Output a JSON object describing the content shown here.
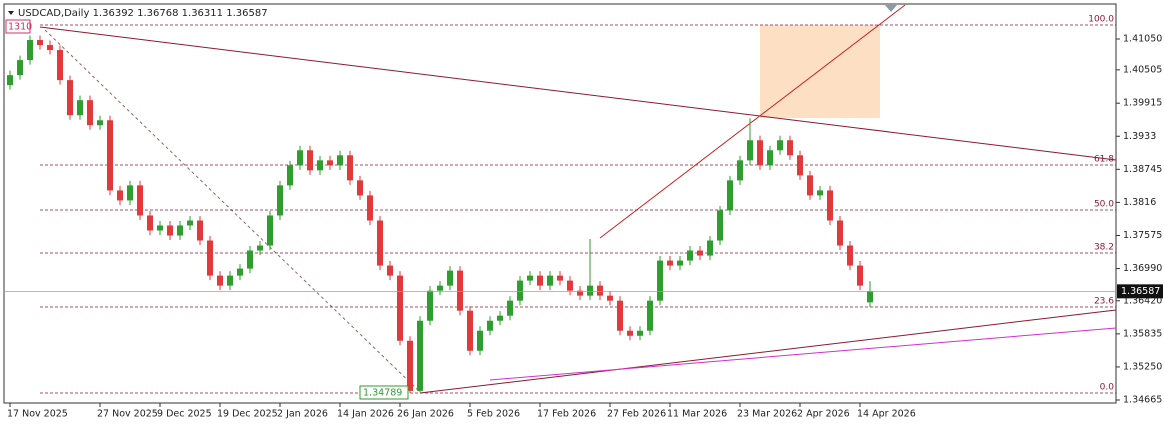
{
  "chart_data": {
    "type": "candlestick",
    "title": "USDCAD,Daily",
    "categories": [
      "17 Nov 2025",
      null,
      null,
      null,
      null,
      null,
      null,
      null,
      null,
      "27 Nov 2025",
      null,
      null,
      null,
      null,
      null,
      "9 Dec 2025",
      null,
      null,
      null,
      null,
      null,
      "19 Dec 2025",
      null,
      null,
      null,
      null,
      null,
      "2 Jan 2026",
      null,
      null,
      null,
      null,
      null,
      "14 Jan 2026",
      null,
      null,
      null,
      null,
      null,
      "26 Jan 2026",
      null,
      null,
      null,
      null,
      null,
      null,
      "5 Feb 2026",
      null,
      null,
      null,
      null,
      null,
      null,
      "17 Feb 2026",
      null,
      null,
      null,
      null,
      null,
      null,
      "27 Feb 2026",
      null,
      null,
      null,
      null,
      null,
      "11 Mar 2026",
      null,
      null,
      null,
      null,
      null,
      null,
      "23 Mar 2026",
      null,
      null,
      null,
      null,
      null,
      "2 Apr 2026",
      null,
      null,
      null,
      null,
      null,
      "14 Apr 2026",
      null
    ],
    "open": [
      1.40234,
      1.40411,
      1.40677,
      1.41032,
      1.40943,
      1.40855,
      1.40323,
      1.39702,
      1.39968,
      1.39525,
      1.39613,
      1.38372,
      1.38195,
      1.38461,
      1.37929,
      1.37663,
      1.37752,
      1.37574,
      1.37752,
      1.3784,
      1.37486,
      1.36865,
      1.36688,
      1.36865,
      1.36989,
      1.37309,
      1.37397,
      1.37929,
      1.38461,
      1.38816,
      1.39082,
      1.38727,
      1.38904,
      1.38816,
      1.38993,
      1.3855,
      1.38284,
      1.3784,
      1.37043,
      1.36865,
      1.35713,
      1.34826,
      1.36067,
      1.36599,
      1.36688,
      1.36954,
      1.36245,
      1.35536,
      1.3589,
      1.36067,
      1.36156,
      1.36422,
      1.36777,
      1.36865,
      1.36688,
      1.36865,
      1.36777,
      1.36599,
      1.36511,
      1.36688,
      1.36511,
      1.36422,
      1.3589,
      1.35801,
      1.3589,
      1.36422,
      1.37131,
      1.37043,
      1.37131,
      1.37309,
      1.3722,
      1.37486,
      1.38018,
      1.3855,
      1.38904,
      1.39259,
      1.38816,
      1.39082,
      1.39259,
      1.38993,
      1.38638,
      1.38284,
      1.38372,
      1.3784,
      1.37397,
      1.37043,
      1.36392
    ],
    "high": [
      1.40491,
      1.40757,
      1.41112,
      1.41112,
      1.41023,
      1.40935,
      1.40403,
      1.40048,
      1.40048,
      1.39693,
      1.39693,
      1.38452,
      1.38541,
      1.38541,
      1.38009,
      1.37832,
      1.37832,
      1.37832,
      1.3792,
      1.3792,
      1.37566,
      1.36945,
      1.36945,
      1.37069,
      1.37389,
      1.37477,
      1.38009,
      1.38541,
      1.38896,
      1.39162,
      1.39162,
      1.38984,
      1.38984,
      1.39073,
      1.39073,
      1.3863,
      1.38364,
      1.3792,
      1.37123,
      1.36945,
      1.35793,
      1.36147,
      1.36679,
      1.36768,
      1.37034,
      1.37034,
      1.36325,
      1.3597,
      1.36147,
      1.36236,
      1.36502,
      1.36857,
      1.36945,
      1.36945,
      1.36945,
      1.36945,
      1.36857,
      1.36679,
      1.37513,
      1.36768,
      1.36591,
      1.36502,
      1.3597,
      1.3597,
      1.36502,
      1.37211,
      1.37211,
      1.37211,
      1.37389,
      1.37389,
      1.37566,
      1.38098,
      1.3863,
      1.38984,
      1.39649,
      1.39339,
      1.39162,
      1.39339,
      1.39339,
      1.39073,
      1.38718,
      1.38452,
      1.38452,
      1.3792,
      1.37477,
      1.37123,
      1.36768
    ],
    "low": [
      1.40154,
      1.40331,
      1.40597,
      1.40863,
      1.40775,
      1.40243,
      1.39622,
      1.39622,
      1.39445,
      1.39445,
      1.38292,
      1.38115,
      1.38115,
      1.37849,
      1.37583,
      1.37583,
      1.37494,
      1.37494,
      1.37672,
      1.37406,
      1.36785,
      1.36608,
      1.36608,
      1.36785,
      1.36909,
      1.37229,
      1.37317,
      1.37849,
      1.38381,
      1.38736,
      1.38647,
      1.38647,
      1.38736,
      1.38736,
      1.3847,
      1.38204,
      1.3776,
      1.36963,
      1.36785,
      1.35633,
      1.34789,
      1.348,
      1.35987,
      1.36519,
      1.36608,
      1.36165,
      1.35456,
      1.35456,
      1.3581,
      1.35987,
      1.36076,
      1.36342,
      1.36697,
      1.36608,
      1.36608,
      1.36697,
      1.36519,
      1.36431,
      1.36431,
      1.36431,
      1.36342,
      1.3581,
      1.35721,
      1.35721,
      1.3581,
      1.36342,
      1.36963,
      1.36963,
      1.37051,
      1.3714,
      1.3714,
      1.37406,
      1.37938,
      1.3847,
      1.38824,
      1.38736,
      1.38736,
      1.39002,
      1.38913,
      1.38558,
      1.38204,
      1.38204,
      1.3776,
      1.37317,
      1.36963,
      1.36608,
      1.36311
    ],
    "close": [
      1.40411,
      1.40677,
      1.41032,
      1.40943,
      1.40855,
      1.40323,
      1.39702,
      1.39968,
      1.39525,
      1.39613,
      1.38372,
      1.38195,
      1.38461,
      1.37929,
      1.37663,
      1.37752,
      1.37574,
      1.37752,
      1.3784,
      1.37486,
      1.36865,
      1.36688,
      1.36865,
      1.36989,
      1.37309,
      1.37397,
      1.37929,
      1.38461,
      1.38816,
      1.39082,
      1.38727,
      1.38904,
      1.38816,
      1.38993,
      1.3855,
      1.38284,
      1.3784,
      1.37043,
      1.36865,
      1.35713,
      1.34826,
      1.36067,
      1.36599,
      1.36688,
      1.36954,
      1.36245,
      1.35536,
      1.3589,
      1.36067,
      1.36156,
      1.36422,
      1.36777,
      1.36865,
      1.36688,
      1.36865,
      1.36777,
      1.36599,
      1.36511,
      1.36688,
      1.36511,
      1.36422,
      1.3589,
      1.35801,
      1.3589,
      1.36422,
      1.37131,
      1.37043,
      1.37131,
      1.37309,
      1.3722,
      1.37486,
      1.38018,
      1.3855,
      1.38904,
      1.39259,
      1.38816,
      1.39082,
      1.39259,
      1.38993,
      1.38638,
      1.38284,
      1.38372,
      1.3784,
      1.37397,
      1.37043,
      1.36688,
      1.36587
    ],
    "up_color": "#2e9e2e",
    "down_color": "#e03a3a",
    "ylim": [
      1.34612,
      1.4174
    ],
    "yticks": [
      {
        "value": 1.4105,
        "label": "1.41050"
      },
      1.40505,
      1.39915,
      1.3933,
      1.38745,
      1.3816,
      1.37575,
      {
        "value": 1.3699,
        "label": "1.36990"
      },
      {
        "value": 1.3642,
        "label": "1.36420"
      },
      1.35835,
      {
        "value": 1.3525,
        "label": "1.35250"
      },
      1.34665
    ],
    "levels": [
      {
        "value": 1.41298,
        "label": "100.0"
      },
      {
        "value": 1.38822,
        "label": "61.8"
      },
      {
        "value": 1.38026,
        "label": "50.0"
      },
      {
        "value": 1.37265,
        "label": "38.2"
      },
      {
        "value": 1.3631,
        "label": "23.6"
      },
      {
        "value": 1.34789,
        "label": "0.0"
      }
    ],
    "annotations": [
      "1310"
    ]
  }
}
